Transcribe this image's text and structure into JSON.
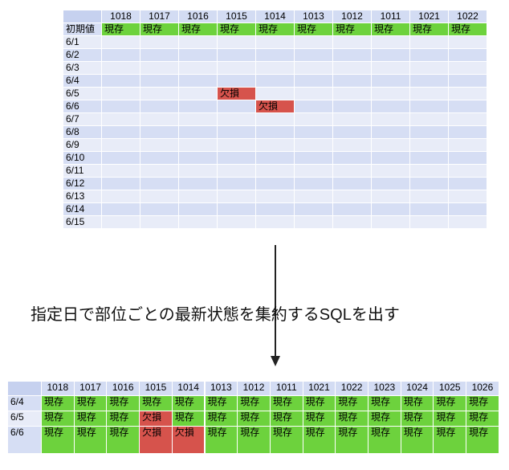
{
  "status_colors": {
    "現存": "#6dd23d",
    "欠損": "#d6534c"
  },
  "top_table": {
    "columns": [
      "1018",
      "1017",
      "1016",
      "1015",
      "1014",
      "1013",
      "1012",
      "1011",
      "1021",
      "1022"
    ],
    "rows": [
      {
        "label": "初期値",
        "cells": [
          "現存",
          "現存",
          "現存",
          "現存",
          "現存",
          "現存",
          "現存",
          "現存",
          "現存",
          "現存"
        ]
      },
      {
        "label": "6/1",
        "cells": [
          null,
          null,
          null,
          null,
          null,
          null,
          null,
          null,
          null,
          null
        ]
      },
      {
        "label": "6/2",
        "cells": [
          null,
          null,
          null,
          null,
          null,
          null,
          null,
          null,
          null,
          null
        ]
      },
      {
        "label": "6/3",
        "cells": [
          null,
          null,
          null,
          null,
          null,
          null,
          null,
          null,
          null,
          null
        ]
      },
      {
        "label": "6/4",
        "cells": [
          null,
          null,
          null,
          null,
          null,
          null,
          null,
          null,
          null,
          null
        ]
      },
      {
        "label": "6/5",
        "cells": [
          null,
          null,
          null,
          "欠損",
          null,
          null,
          null,
          null,
          null,
          null
        ]
      },
      {
        "label": "6/6",
        "cells": [
          null,
          null,
          null,
          null,
          "欠損",
          null,
          null,
          null,
          null,
          null
        ]
      },
      {
        "label": "6/7",
        "cells": [
          null,
          null,
          null,
          null,
          null,
          null,
          null,
          null,
          null,
          null
        ]
      },
      {
        "label": "6/8",
        "cells": [
          null,
          null,
          null,
          null,
          null,
          null,
          null,
          null,
          null,
          null
        ]
      },
      {
        "label": "6/9",
        "cells": [
          null,
          null,
          null,
          null,
          null,
          null,
          null,
          null,
          null,
          null
        ]
      },
      {
        "label": "6/10",
        "cells": [
          null,
          null,
          null,
          null,
          null,
          null,
          null,
          null,
          null,
          null
        ]
      },
      {
        "label": "6/11",
        "cells": [
          null,
          null,
          null,
          null,
          null,
          null,
          null,
          null,
          null,
          null
        ]
      },
      {
        "label": "6/12",
        "cells": [
          null,
          null,
          null,
          null,
          null,
          null,
          null,
          null,
          null,
          null
        ]
      },
      {
        "label": "6/13",
        "cells": [
          null,
          null,
          null,
          null,
          null,
          null,
          null,
          null,
          null,
          null
        ]
      },
      {
        "label": "6/14",
        "cells": [
          null,
          null,
          null,
          null,
          null,
          null,
          null,
          null,
          null,
          null
        ]
      },
      {
        "label": "6/15",
        "cells": [
          null,
          null,
          null,
          null,
          null,
          null,
          null,
          null,
          null,
          null
        ]
      }
    ]
  },
  "arrow_label": "指定日で部位ごとの最新状態を集約するSQLを出す",
  "bottom_table": {
    "columns": [
      "1018",
      "1017",
      "1016",
      "1015",
      "1014",
      "1013",
      "1012",
      "1011",
      "1021",
      "1022",
      "1023",
      "1024",
      "1025",
      "1026"
    ],
    "rows": [
      {
        "label": "6/4",
        "cells": [
          "現存",
          "現存",
          "現存",
          "現存",
          "現存",
          "現存",
          "現存",
          "現存",
          "現存",
          "現存",
          "現存",
          "現存",
          "現存",
          "現存"
        ]
      },
      {
        "label": "6/5",
        "cells": [
          "現存",
          "現存",
          "現存",
          "欠損",
          "現存",
          "現存",
          "現存",
          "現存",
          "現存",
          "現存",
          "現存",
          "現存",
          "現存",
          "現存"
        ]
      },
      {
        "label": "6/6",
        "cells": [
          "現存",
          "現存",
          "現存",
          "欠損",
          "欠損",
          "現存",
          "現存",
          "現存",
          "現存",
          "現存",
          "現存",
          "現存",
          "現存",
          "現存"
        ]
      }
    ]
  }
}
